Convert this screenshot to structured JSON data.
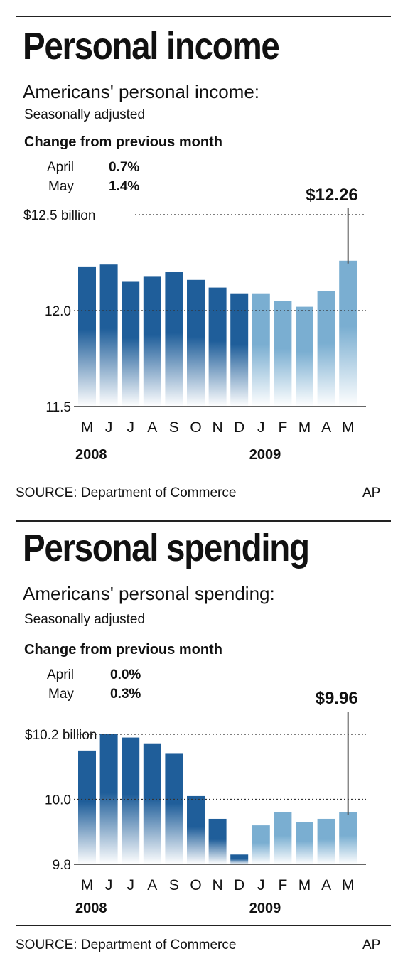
{
  "panels": [
    {
      "title": "Personal income",
      "subtitle": "Americans' personal income:",
      "adjustment": "Seasonally adjusted",
      "change_header": "Change from previous month",
      "changes": [
        {
          "month": "April",
          "value": "0.7%"
        },
        {
          "month": "May",
          "value": "1.4%"
        }
      ],
      "source": "SOURCE: Department of Commerce",
      "credit": "AP"
    },
    {
      "title": "Personal spending",
      "subtitle": "Americans' personal spending:",
      "adjustment": "Seasonally adjusted",
      "change_header": "Change from previous month",
      "changes": [
        {
          "month": "April",
          "value": "0.0%"
        },
        {
          "month": "May",
          "value": "0.3%"
        }
      ],
      "source": "SOURCE: Department of Commerce",
      "credit": "AP"
    }
  ],
  "chart_data": [
    {
      "type": "bar",
      "title": "Personal income",
      "categories": [
        "M",
        "J",
        "J",
        "A",
        "S",
        "O",
        "N",
        "D",
        "J",
        "F",
        "M",
        "A",
        "M"
      ],
      "year_labels": [
        {
          "label": "2008",
          "at_index": 0
        },
        {
          "label": "2009",
          "at_index": 8
        }
      ],
      "values": [
        12.23,
        12.24,
        12.15,
        12.18,
        12.2,
        12.16,
        12.12,
        12.09,
        12.09,
        12.05,
        12.02,
        12.1,
        12.26
      ],
      "y_ticks": [
        {
          "value": 12.5,
          "label": "$12.5 billion"
        },
        {
          "value": 12.0,
          "label": "12.0"
        },
        {
          "value": 11.5,
          "label": "11.5"
        }
      ],
      "ylim": [
        11.5,
        12.5
      ],
      "callout": {
        "index": 12,
        "label": "$12.26"
      },
      "colors": {
        "dark": "#1f5e9a",
        "light": "#7aaed1"
      },
      "light_from_index": 8
    },
    {
      "type": "bar",
      "title": "Personal spending",
      "categories": [
        "M",
        "J",
        "J",
        "A",
        "S",
        "O",
        "N",
        "D",
        "J",
        "F",
        "M",
        "A",
        "M"
      ],
      "year_labels": [
        {
          "label": "2008",
          "at_index": 0
        },
        {
          "label": "2009",
          "at_index": 8
        }
      ],
      "values": [
        10.15,
        10.2,
        10.19,
        10.17,
        10.14,
        10.01,
        9.94,
        9.83,
        9.92,
        9.96,
        9.93,
        9.94,
        9.96
      ],
      "y_ticks": [
        {
          "value": 10.2,
          "label": "$10.2 billion"
        },
        {
          "value": 10.0,
          "label": "10.0"
        },
        {
          "value": 9.8,
          "label": "9.8"
        }
      ],
      "ylim": [
        9.8,
        10.2
      ],
      "callout": {
        "index": 12,
        "label": "$9.96"
      },
      "colors": {
        "dark": "#1f5e9a",
        "light": "#7aaed1"
      },
      "light_from_index": 8
    }
  ]
}
